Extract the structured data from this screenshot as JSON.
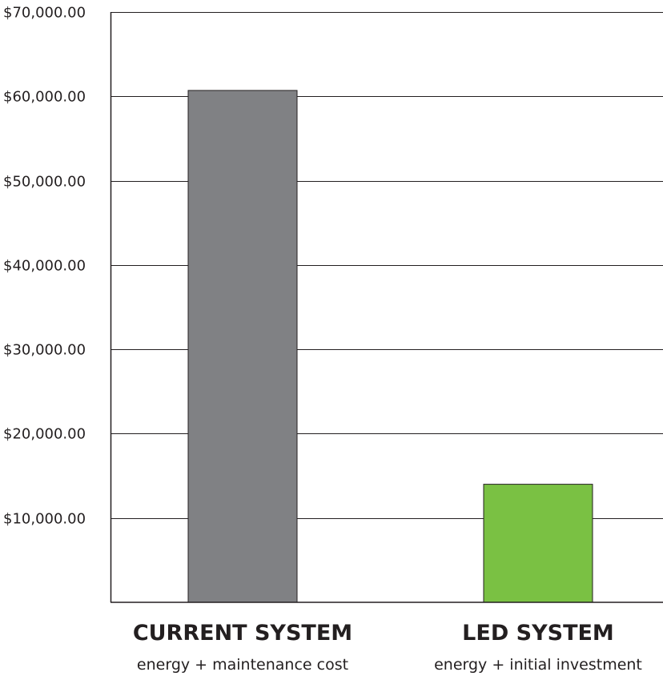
{
  "chart_data": {
    "type": "bar",
    "categories": [
      "CURRENT SYSTEM",
      "LED SYSTEM"
    ],
    "category_sublabels": [
      "energy + maintenance cost",
      "energy + initial investment"
    ],
    "values": [
      60700,
      14000
    ],
    "bar_colors": [
      "#808184",
      "#7ac143"
    ],
    "ylim": [
      0,
      70000
    ],
    "yticks": [
      10000,
      20000,
      30000,
      40000,
      50000,
      60000,
      70000
    ],
    "ytick_labels": [
      "$10,000.00",
      "$20,000.00",
      "$30,000.00",
      "$40,000.00",
      "$50,000.00",
      "$60,000.00",
      "$70,000.00"
    ],
    "grid": true,
    "legend": false
  }
}
